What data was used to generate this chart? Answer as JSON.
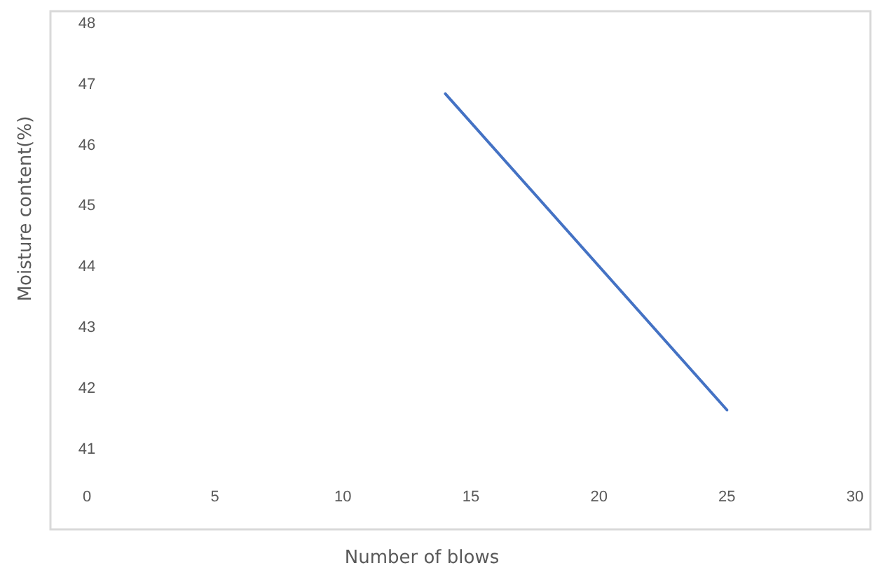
{
  "chart_data": {
    "type": "line",
    "xlabel": "Number of blows",
    "ylabel": "Moisture content(%)",
    "x": [
      14,
      25
    ],
    "series": [
      {
        "color": "#4472c4",
        "values": [
          46.85,
          41.65
        ]
      }
    ],
    "xlim": [
      0,
      30
    ],
    "xticks": [
      0,
      5,
      10,
      15,
      20,
      25,
      30
    ],
    "ylim": [
      41,
      48
    ],
    "yticks": [
      41,
      42,
      43,
      44,
      45,
      46,
      47,
      48
    ],
    "grid": false
  }
}
